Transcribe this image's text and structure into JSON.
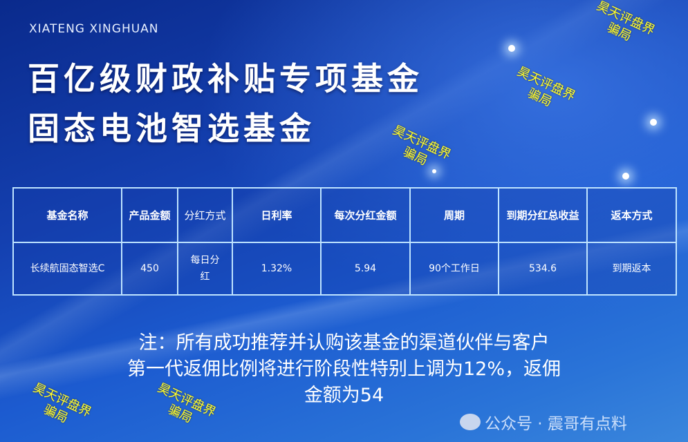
{
  "brand": "XIATENG XINGHUAN",
  "title_line1": "百亿级财政补贴专项基金",
  "title_line2": "固态电池智选基金",
  "table": {
    "headers": [
      "基金名称",
      "产品金额",
      "分红方式",
      "日利率",
      "每次分红金额",
      "周期",
      "到期分红总收益",
      "返本方式"
    ],
    "row": [
      "长续航固态智选C",
      "450",
      "每日分红",
      "1.32%",
      "5.94",
      "90个工作日",
      "534.6",
      "到期返本"
    ]
  },
  "note": {
    "line1": "注：所有成功推荐并认购该基金的渠道伙伴与客户",
    "line2": "第一代返佣比例将进行阶段性特别上调为12%，返佣",
    "line3": "金额为54"
  },
  "watermark": {
    "line1": "昊天评盘界",
    "line2": "骗局"
  },
  "footer": "公众号 · 震哥有点料",
  "colors": {
    "watermark": "#ffff30",
    "table_border": "#bfe4ff"
  }
}
